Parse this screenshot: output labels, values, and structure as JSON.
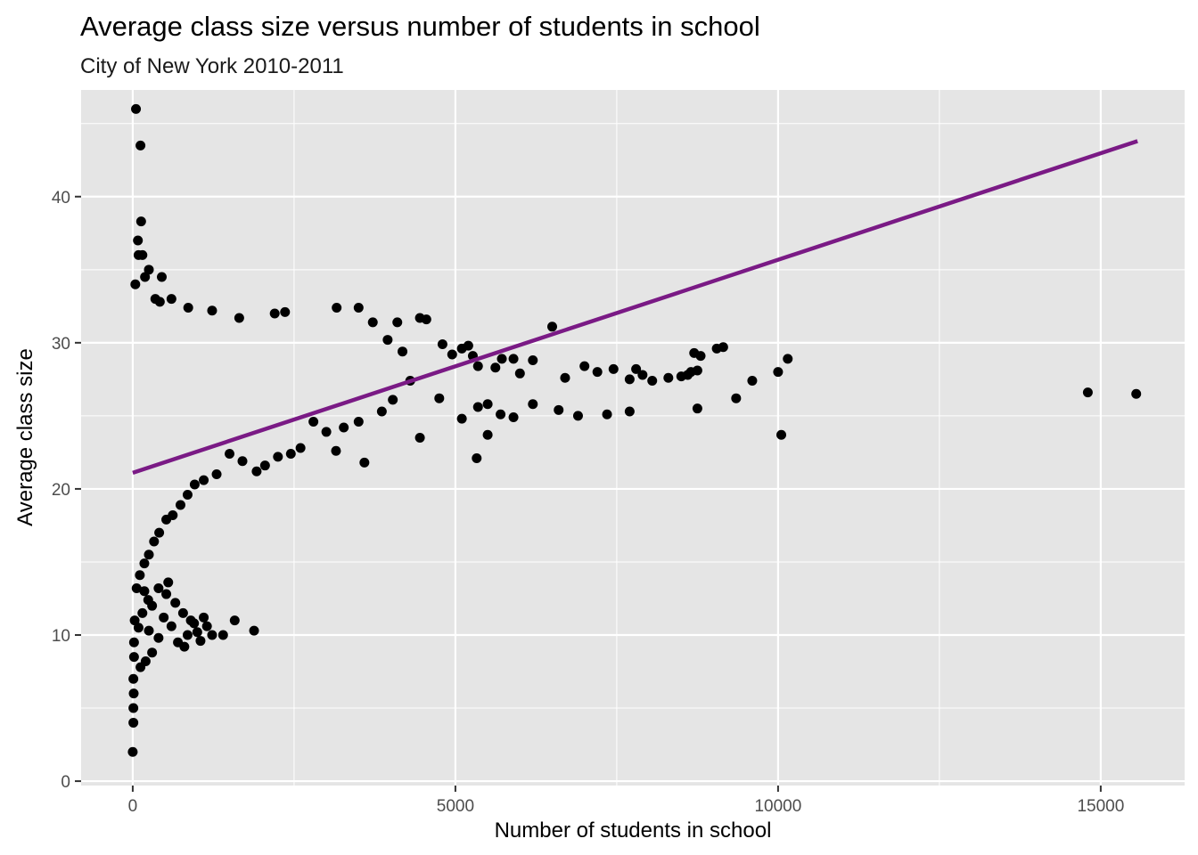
{
  "chart_data": {
    "type": "scatter",
    "title": "Average class size versus number of students in school",
    "subtitle": "City of New York 2010-2011",
    "xlabel": "Number of students in school",
    "ylabel": "Average class size",
    "xlim": [
      -800,
      16300
    ],
    "ylim": [
      -0.3,
      47.3
    ],
    "x_ticks": [
      0,
      5000,
      10000,
      15000
    ],
    "x_tick_labels": [
      "0",
      "5000",
      "10000",
      "15000"
    ],
    "y_ticks": [
      0,
      10,
      20,
      30,
      40
    ],
    "y_tick_labels": [
      "0",
      "10",
      "20",
      "30",
      "40"
    ],
    "grid": true,
    "legend": "none",
    "colors": {
      "panel": "#e5e5e5",
      "grid": "#ffffff",
      "points": "#000000",
      "fit_line": "#7a1a85"
    },
    "fit_line": {
      "x": [
        0,
        15570
      ],
      "y": [
        21.1,
        43.8
      ]
    },
    "points": [
      [
        50,
        46.0
      ],
      [
        120,
        43.5
      ],
      [
        130,
        38.3
      ],
      [
        80,
        37.0
      ],
      [
        90,
        36.0
      ],
      [
        150,
        36.0
      ],
      [
        40,
        34.0
      ],
      [
        190,
        34.5
      ],
      [
        250,
        35.0
      ],
      [
        350,
        33.0
      ],
      [
        450,
        34.5
      ],
      [
        600,
        33.0
      ],
      [
        420,
        32.8
      ],
      [
        860,
        32.4
      ],
      [
        1230,
        32.2
      ],
      [
        1650,
        31.7
      ],
      [
        2200,
        32.0
      ],
      [
        2360,
        32.1
      ],
      [
        3160,
        32.4
      ],
      [
        3500,
        32.4
      ],
      [
        4450,
        31.7
      ],
      [
        4550,
        31.6
      ],
      [
        3950,
        30.2
      ],
      [
        4100,
        31.4
      ],
      [
        3720,
        31.4
      ],
      [
        4180,
        29.4
      ],
      [
        4800,
        29.9
      ],
      [
        4950,
        29.2
      ],
      [
        5100,
        29.6
      ],
      [
        5200,
        29.8
      ],
      [
        5270,
        29.1
      ],
      [
        5350,
        28.4
      ],
      [
        5620,
        28.3
      ],
      [
        5720,
        28.9
      ],
      [
        5900,
        28.9
      ],
      [
        6000,
        27.9
      ],
      [
        6200,
        28.8
      ],
      [
        6500,
        31.1
      ],
      [
        6700,
        27.6
      ],
      [
        7000,
        28.4
      ],
      [
        7200,
        28.0
      ],
      [
        7450,
        28.2
      ],
      [
        7700,
        27.5
      ],
      [
        7800,
        28.2
      ],
      [
        7900,
        27.8
      ],
      [
        8050,
        27.4
      ],
      [
        8300,
        27.6
      ],
      [
        8500,
        27.7
      ],
      [
        8600,
        27.8
      ],
      [
        8700,
        29.3
      ],
      [
        8800,
        29.1
      ],
      [
        8650,
        28.0
      ],
      [
        8750,
        28.1
      ],
      [
        9050,
        29.6
      ],
      [
        9150,
        29.7
      ],
      [
        9350,
        26.2
      ],
      [
        9600,
        27.4
      ],
      [
        10000,
        28.0
      ],
      [
        10050,
        23.7
      ],
      [
        10150,
        28.9
      ],
      [
        8750,
        25.5
      ],
      [
        14800,
        26.6
      ],
      [
        15550,
        26.5
      ],
      [
        6900,
        25.0
      ],
      [
        7350,
        25.1
      ],
      [
        7700,
        25.3
      ],
      [
        6600,
        25.4
      ],
      [
        6200,
        25.8
      ],
      [
        5900,
        24.9
      ],
      [
        5700,
        25.1
      ],
      [
        5500,
        25.8
      ],
      [
        5350,
        25.6
      ],
      [
        5100,
        24.8
      ],
      [
        5500,
        23.7
      ],
      [
        5330,
        22.1
      ],
      [
        4450,
        23.5
      ],
      [
        3590,
        21.8
      ],
      [
        3150,
        22.6
      ],
      [
        4750,
        26.2
      ],
      [
        4300,
        27.4
      ],
      [
        4030,
        26.1
      ],
      [
        3860,
        25.3
      ],
      [
        3500,
        24.6
      ],
      [
        3270,
        24.2
      ],
      [
        3000,
        23.9
      ],
      [
        2800,
        24.6
      ],
      [
        2600,
        22.8
      ],
      [
        2450,
        22.4
      ],
      [
        2250,
        22.2
      ],
      [
        2050,
        21.6
      ],
      [
        1920,
        21.2
      ],
      [
        1700,
        21.9
      ],
      [
        1500,
        22.4
      ],
      [
        1300,
        21.0
      ],
      [
        1100,
        20.6
      ],
      [
        960,
        20.3
      ],
      [
        850,
        19.6
      ],
      [
        740,
        18.9
      ],
      [
        620,
        18.2
      ],
      [
        520,
        17.9
      ],
      [
        410,
        17.0
      ],
      [
        330,
        16.4
      ],
      [
        250,
        15.5
      ],
      [
        180,
        14.9
      ],
      [
        110,
        14.1
      ],
      [
        60,
        13.2
      ],
      [
        30,
        11.0
      ],
      [
        20,
        9.5
      ],
      [
        10,
        7.0
      ],
      [
        15,
        6.0
      ],
      [
        10,
        5.0
      ],
      [
        10,
        4.0
      ],
      [
        0,
        2.0
      ],
      [
        20,
        8.5
      ],
      [
        180,
        13.0
      ],
      [
        300,
        12.0
      ],
      [
        480,
        11.2
      ],
      [
        520,
        12.8
      ],
      [
        660,
        12.2
      ],
      [
        780,
        11.5
      ],
      [
        900,
        11.0
      ],
      [
        1000,
        10.2
      ],
      [
        1050,
        9.6
      ],
      [
        1150,
        10.6
      ],
      [
        1230,
        10.0
      ],
      [
        1400,
        10.0
      ],
      [
        1580,
        11.0
      ],
      [
        1880,
        10.3
      ],
      [
        800,
        9.2
      ],
      [
        700,
        9.5
      ],
      [
        600,
        10.6
      ],
      [
        400,
        9.8
      ],
      [
        250,
        10.3
      ],
      [
        950,
        10.8
      ],
      [
        1100,
        11.2
      ],
      [
        850,
        10.0
      ],
      [
        300,
        8.8
      ],
      [
        200,
        8.2
      ],
      [
        120,
        7.8
      ],
      [
        90,
        10.5
      ],
      [
        150,
        11.5
      ],
      [
        400,
        13.2
      ],
      [
        550,
        13.6
      ],
      [
        240,
        12.4
      ]
    ]
  }
}
